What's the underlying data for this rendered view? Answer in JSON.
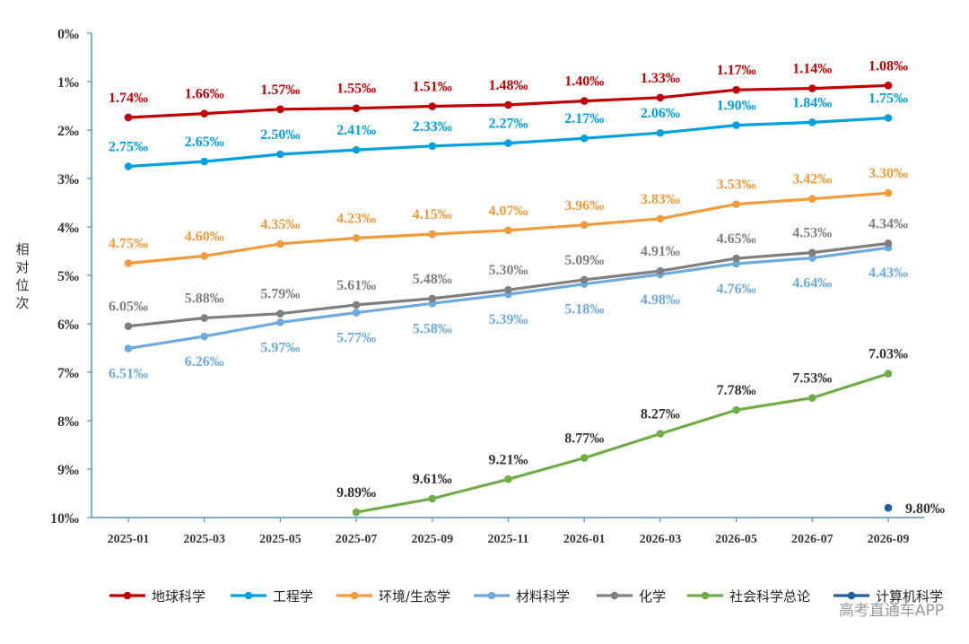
{
  "watermark": "高考直通车APP",
  "chart_data": {
    "type": "line",
    "ylabel": "相对位次",
    "xlabel": "",
    "categories": [
      "2025-01",
      "2025-03",
      "2025-05",
      "2025-07",
      "2025-09",
      "2025-11",
      "2026-01",
      "2026-03",
      "2026-05",
      "2026-07",
      "2026-09"
    ],
    "y_tick_labels": [
      "0‰",
      "1‰",
      "2‰",
      "3‰",
      "4‰",
      "5‰",
      "6‰",
      "7‰",
      "8‰",
      "9‰",
      "10‰"
    ],
    "ylim": [
      10,
      0
    ],
    "y_inverted": true,
    "grid": false,
    "legend_position": "bottom",
    "series": [
      {
        "name": "地球科学",
        "color": "#C00000",
        "values": [
          1.74,
          1.66,
          1.57,
          1.55,
          1.51,
          1.48,
          1.4,
          1.33,
          1.17,
          1.14,
          1.08
        ],
        "labels": [
          "1.74‰",
          "1.66‰",
          "1.57‰",
          "1.55‰",
          "1.51‰",
          "1.48‰",
          "1.40‰",
          "1.33‰",
          "1.17‰",
          "1.14‰",
          "1.08‰"
        ],
        "label_pos": "above"
      },
      {
        "name": "工程学",
        "color": "#00A0E0",
        "values": [
          2.75,
          2.65,
          2.5,
          2.41,
          2.33,
          2.27,
          2.17,
          2.06,
          1.9,
          1.84,
          1.75
        ],
        "labels": [
          "2.75‰",
          "2.65‰",
          "2.50‰",
          "2.41‰",
          "2.33‰",
          "2.27‰",
          "2.17‰",
          "2.06‰",
          "1.90‰",
          "1.84‰",
          "1.75‰"
        ],
        "label_pos": "above"
      },
      {
        "name": "环境/生态学",
        "color": "#F39A3A",
        "values": [
          4.75,
          4.6,
          4.35,
          4.23,
          4.15,
          4.07,
          3.96,
          3.83,
          3.53,
          3.42,
          3.3
        ],
        "labels": [
          "4.75‰",
          "4.60‰",
          "4.35‰",
          "4.23‰",
          "4.15‰",
          "4.07‰",
          "3.96‰",
          "3.83‰",
          "3.53‰",
          "3.42‰",
          "3.30‰"
        ],
        "label_pos": "above"
      },
      {
        "name": "材料科学",
        "color": "#6FAADC",
        "values": [
          6.51,
          6.26,
          5.97,
          5.77,
          5.58,
          5.39,
          5.18,
          4.98,
          4.76,
          4.64,
          4.43
        ],
        "labels": [
          "6.51‰",
          "6.26‰",
          "5.97‰",
          "5.77‰",
          "5.58‰",
          "5.39‰",
          "5.18‰",
          "4.98‰",
          "4.76‰",
          "4.64‰",
          "4.43‰"
        ],
        "label_pos": "below"
      },
      {
        "name": "化学",
        "color": "#7F7F7F",
        "values": [
          6.05,
          5.88,
          5.79,
          5.61,
          5.48,
          5.3,
          5.09,
          4.91,
          4.65,
          4.53,
          4.34
        ],
        "labels": [
          "6.05‰",
          "5.88‰",
          "5.79‰",
          "5.61‰",
          "5.48‰",
          "5.30‰",
          "5.09‰",
          "4.91‰",
          "4.65‰",
          "4.53‰",
          "4.34‰"
        ],
        "label_pos": "above"
      },
      {
        "name": "社会科学总论",
        "color": "#70AD47",
        "values": [
          null,
          null,
          null,
          9.89,
          9.61,
          9.21,
          8.77,
          8.27,
          7.78,
          7.53,
          7.03
        ],
        "labels": [
          null,
          null,
          null,
          "9.89‰",
          "9.61‰",
          "9.21‰",
          "8.77‰",
          "8.27‰",
          "7.78‰",
          "7.53‰",
          "7.03‰"
        ],
        "label_color": "#333333",
        "label_pos": "above"
      },
      {
        "name": "计算机科学",
        "color": "#1F5FA0",
        "values": [
          null,
          null,
          null,
          null,
          null,
          null,
          null,
          null,
          null,
          null,
          9.8
        ],
        "labels": [
          null,
          null,
          null,
          null,
          null,
          null,
          null,
          null,
          null,
          null,
          "9.80‰"
        ],
        "label_color": "#333333",
        "label_pos": "right"
      }
    ]
  }
}
